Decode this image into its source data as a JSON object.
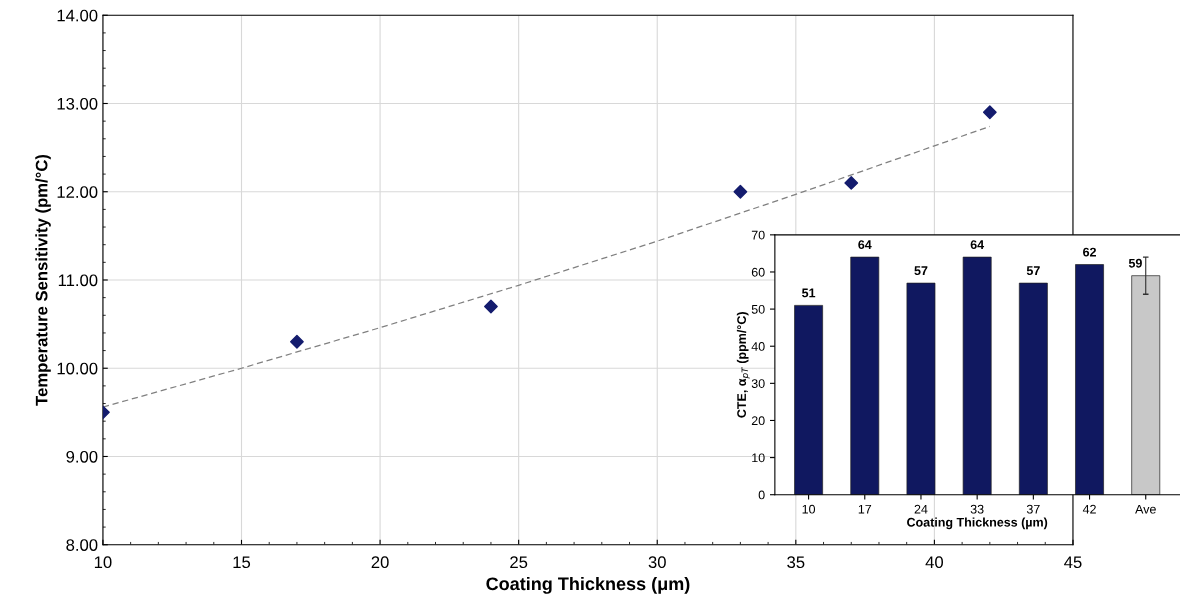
{
  "chart_data": [
    {
      "type": "scatter",
      "xlabel": "Coating Thickness (μm)",
      "ylabel": "Temperature Sensitivity (pm/°C)",
      "xlim": [
        10,
        45
      ],
      "xticks": [
        10,
        15,
        20,
        25,
        30,
        35,
        40,
        45
      ],
      "ylim": [
        8,
        14
      ],
      "yticks": [
        {
          "value": 8,
          "label": "8.00"
        },
        {
          "value": 9,
          "label": "9.00"
        },
        {
          "value": 10,
          "label": "10.00"
        },
        {
          "value": 11,
          "label": "11.00"
        },
        {
          "value": 12,
          "label": "12.00"
        },
        {
          "value": 13,
          "label": "13.00"
        },
        {
          "value": 14,
          "label": "14.00"
        }
      ],
      "grid": true,
      "marker": "diamond",
      "series": [
        {
          "type": "scatter",
          "color": "#141c6e",
          "x": [
            10,
            17,
            24,
            33,
            37,
            42
          ],
          "values": [
            9.5,
            10.3,
            10.7,
            12.0,
            12.1,
            12.9
          ]
        },
        {
          "type": "line",
          "color": "#808080",
          "line_style": "dashed",
          "marker": "none",
          "x": [
            10,
            15,
            20,
            25,
            30,
            35,
            40,
            42
          ],
          "values": [
            9.56,
            10.0,
            10.46,
            10.94,
            11.44,
            11.97,
            12.52,
            12.74
          ]
        }
      ]
    },
    {
      "type": "bar",
      "xlabel": "Coating Thickness (µm)",
      "ylabel": "CTE, α$_{pT}$ (ppm/°C)",
      "categories": [
        "10",
        "17",
        "24",
        "33",
        "37",
        "42",
        "Ave"
      ],
      "values": [
        51,
        64,
        57,
        64,
        57,
        62,
        59
      ],
      "colors": [
        "#101860",
        "#101860",
        "#101860",
        "#101860",
        "#101860",
        "#101860",
        "#c8c8c8"
      ],
      "errors": [
        null,
        null,
        null,
        null,
        null,
        null,
        5
      ],
      "ylim": [
        0,
        70
      ],
      "yticks": [
        0,
        10,
        20,
        30,
        40,
        50,
        60,
        70
      ],
      "data_labels": true
    }
  ]
}
